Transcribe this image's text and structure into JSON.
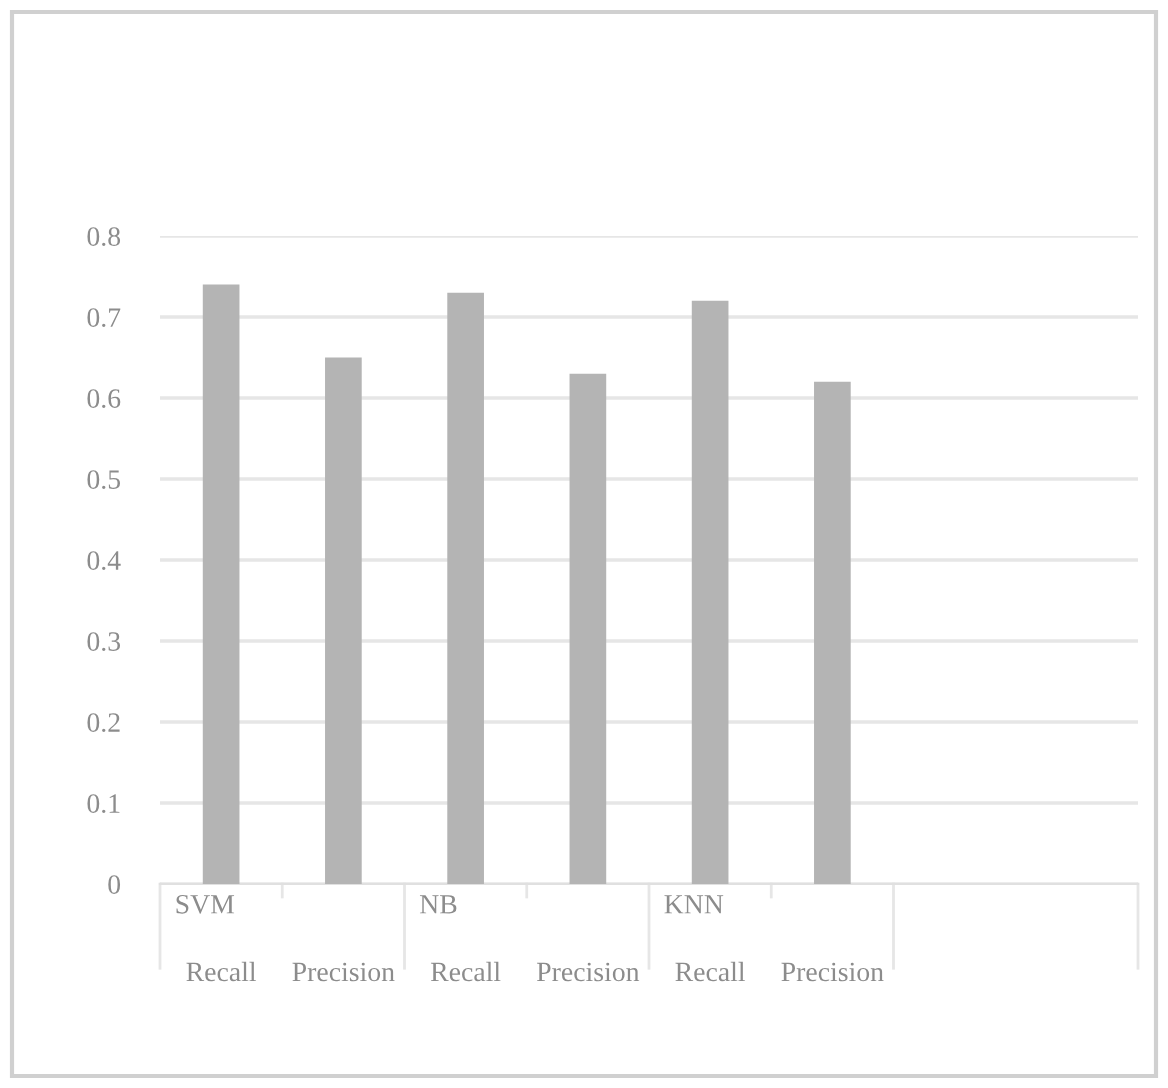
{
  "chart_data": {
    "type": "bar",
    "categories": [
      "Recall",
      "Precision",
      "Recall",
      "Precision",
      "Recall",
      "Precision",
      null,
      null
    ],
    "values": [
      0.74,
      0.65,
      0.73,
      0.63,
      0.72,
      0.62,
      null,
      null
    ],
    "color": "#b4b4b4",
    "ylim": [
      0,
      0.8
    ],
    "yticks": [
      0,
      0.1,
      0.2,
      0.3,
      0.4,
      0.5,
      0.6,
      0.7,
      0.8
    ],
    "grid": "y",
    "annotations": [
      "SVM",
      "NB",
      "KNN"
    ]
  }
}
